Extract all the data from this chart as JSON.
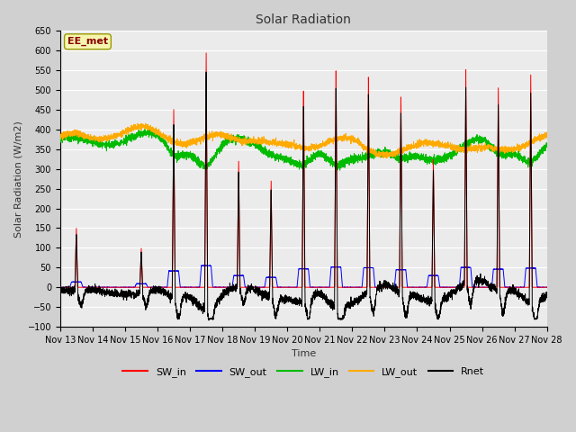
{
  "title": "Solar Radiation",
  "xlabel": "Time",
  "ylabel": "Solar Radiation (W/m2)",
  "ylim": [
    -100,
    650
  ],
  "yticks": [
    -100,
    -50,
    0,
    50,
    100,
    150,
    200,
    250,
    300,
    350,
    400,
    450,
    500,
    550,
    600,
    650
  ],
  "x_tick_labels": [
    "Nov 13",
    "Nov 14",
    "Nov 15",
    "Nov 16",
    "Nov 17",
    "Nov 18",
    "Nov 19",
    "Nov 20",
    "Nov 21",
    "Nov 22",
    "Nov 23",
    "Nov 24",
    "Nov 25",
    "Nov 26",
    "Nov 27",
    "Nov 28"
  ],
  "colors": {
    "SW_in": "#ff0000",
    "SW_out": "#0000ff",
    "LW_in": "#00bb00",
    "LW_out": "#ffaa00",
    "Rnet": "#000000"
  },
  "legend_label": "EE_met",
  "fig_bg": "#d0d0d0",
  "plot_bg": "#ebebeb"
}
